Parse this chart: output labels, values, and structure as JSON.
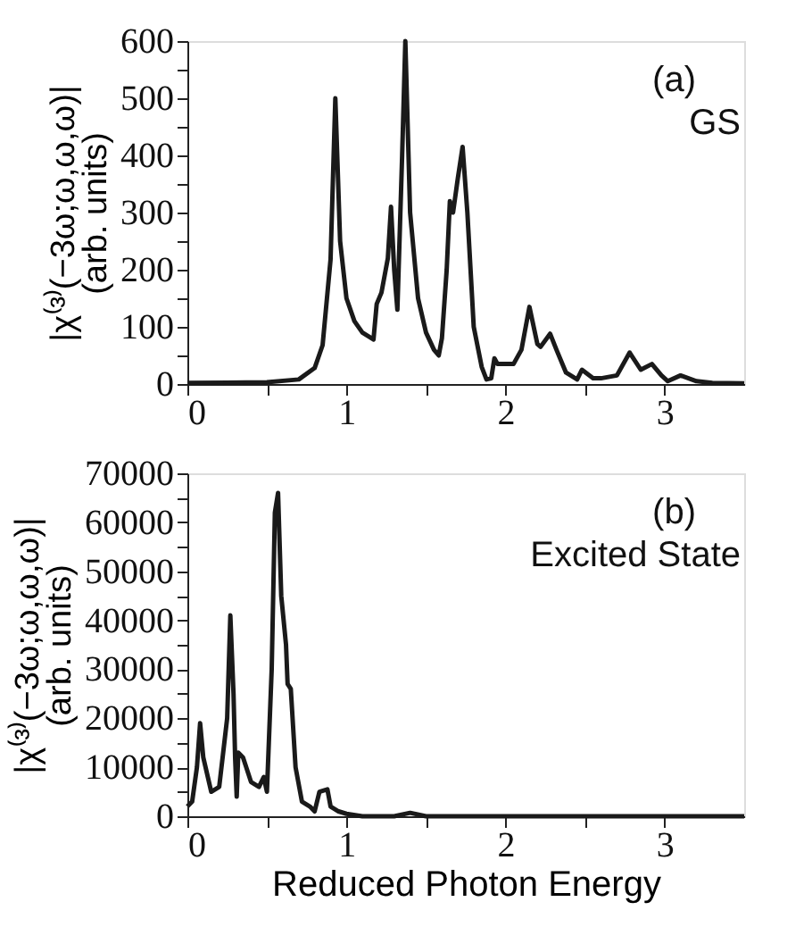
{
  "chart_data": [
    {
      "type": "line",
      "ylabel": "|χ⁽³⁾(−3ω;ω,ω,ω)|\n(arb. units)",
      "annotations": [
        "(a)",
        "GS"
      ],
      "xlim": [
        0,
        3.5
      ],
      "ylim": [
        0,
        600
      ],
      "xticks": [
        0,
        {
          "value": 0.5,
          "label": null
        },
        1,
        {
          "value": 1.5,
          "label": null
        },
        2,
        {
          "value": 2.5,
          "label": null
        },
        3
      ],
      "yticks": [
        0,
        {
          "value": 50,
          "label": null
        },
        100,
        {
          "value": 150,
          "label": null
        },
        200,
        {
          "value": 250,
          "label": null
        },
        300,
        {
          "value": 350,
          "label": null
        },
        400,
        {
          "value": 450,
          "label": null
        },
        500,
        {
          "value": 550,
          "label": null
        },
        600
      ],
      "grid": false,
      "legend": false,
      "series": [
        {
          "color": "#1a1a1a",
          "x": [
            0,
            0.5,
            0.7,
            0.8,
            0.85,
            0.9,
            0.93,
            0.96,
            1.0,
            1.05,
            1.1,
            1.17,
            1.19,
            1.22,
            1.26,
            1.28,
            1.3,
            1.32,
            1.35,
            1.37,
            1.4,
            1.45,
            1.5,
            1.55,
            1.58,
            1.6,
            1.63,
            1.65,
            1.67,
            1.7,
            1.73,
            1.76,
            1.8,
            1.85,
            1.88,
            1.91,
            1.93,
            1.95,
            2.0,
            2.05,
            2.1,
            2.15,
            2.2,
            2.22,
            2.28,
            2.32,
            2.38,
            2.45,
            2.48,
            2.55,
            2.6,
            2.7,
            2.78,
            2.85,
            2.92,
            2.98,
            3.02,
            3.1,
            3.2,
            3.3,
            3.5
          ],
          "values": [
            2,
            3,
            8,
            28,
            68,
            218,
            500,
            250,
            150,
            110,
            90,
            78,
            140,
            160,
            220,
            310,
            200,
            130,
            400,
            600,
            300,
            150,
            90,
            60,
            50,
            80,
            200,
            320,
            300,
            360,
            415,
            300,
            100,
            30,
            8,
            10,
            45,
            35,
            35,
            35,
            60,
            135,
            70,
            65,
            88,
            60,
            20,
            8,
            25,
            10,
            10,
            15,
            55,
            25,
            35,
            15,
            5,
            15,
            5,
            2,
            1
          ]
        }
      ]
    },
    {
      "type": "line",
      "ylabel": "|χ⁽³⁾(−3ω;ω,ω,ω)|\n(arb. units)",
      "xlabel": "Reduced Photon Energy",
      "annotations": [
        "(b)",
        "Excited State"
      ],
      "xlim": [
        0,
        3.5
      ],
      "ylim": [
        0,
        70000
      ],
      "xticks": [
        0,
        {
          "value": 0.5,
          "label": null
        },
        1,
        {
          "value": 1.5,
          "label": null
        },
        2,
        {
          "value": 2.5,
          "label": null
        },
        3
      ],
      "yticks": [
        0,
        {
          "value": 5000,
          "label": null
        },
        10000,
        {
          "value": 15000,
          "label": null
        },
        20000,
        {
          "value": 25000,
          "label": null
        },
        30000,
        {
          "value": 35000,
          "label": null
        },
        40000,
        {
          "value": 45000,
          "label": null
        },
        50000,
        {
          "value": 55000,
          "label": null
        },
        60000,
        {
          "value": 65000,
          "label": null
        },
        70000
      ],
      "grid": false,
      "legend": false,
      "series": [
        {
          "color": "#1a1a1a",
          "x": [
            0,
            0.03,
            0.06,
            0.08,
            0.1,
            0.15,
            0.2,
            0.25,
            0.27,
            0.29,
            0.3,
            0.31,
            0.32,
            0.35,
            0.4,
            0.45,
            0.48,
            0.5,
            0.53,
            0.55,
            0.57,
            0.59,
            0.62,
            0.63,
            0.65,
            0.68,
            0.72,
            0.77,
            0.8,
            0.83,
            0.88,
            0.9,
            0.95,
            1.0,
            1.1,
            1.3,
            1.4,
            1.5,
            2.0,
            3.5
          ],
          "values": [
            2000,
            3000,
            10000,
            19000,
            12000,
            5000,
            6000,
            20000,
            41000,
            25000,
            12000,
            4000,
            13000,
            12000,
            7000,
            6000,
            8000,
            5000,
            30000,
            62000,
            66000,
            45000,
            35000,
            27000,
            26000,
            10000,
            3000,
            2000,
            1000,
            5000,
            5500,
            2000,
            1000,
            500,
            0,
            0,
            700,
            0,
            0,
            0
          ]
        }
      ]
    }
  ]
}
